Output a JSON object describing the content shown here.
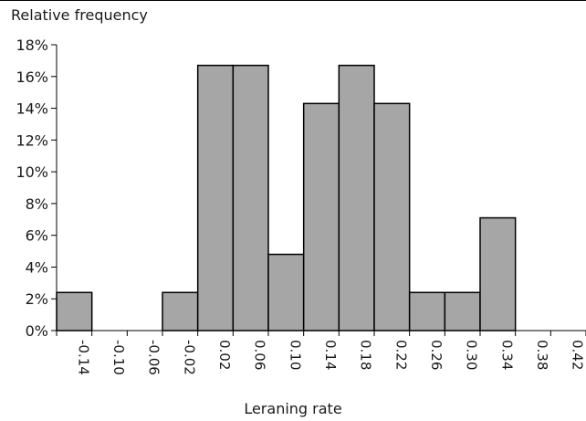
{
  "chart_data": {
    "type": "bar",
    "title": "",
    "ylabel": "Relative frequency",
    "xlabel": "Leraning rate",
    "categories": [
      "-0.14",
      "-0.10",
      "-0.06",
      "-0.02",
      "0.02",
      "0.06",
      "0.10",
      "0.14",
      "0.18",
      "0.22",
      "0.26",
      "0.30",
      "0.34",
      "0.38",
      "0.42"
    ],
    "values": [
      2.4,
      0,
      0,
      2.4,
      16.7,
      16.7,
      4.8,
      14.3,
      16.7,
      14.3,
      2.4,
      2.4,
      7.1,
      0,
      0
    ],
    "y_unit": "%",
    "ylim": [
      0,
      18
    ],
    "yticks": [
      "0%",
      "2%",
      "4%",
      "6%",
      "8%",
      "10%",
      "12%",
      "14%",
      "16%",
      "18%"
    ],
    "grid": false,
    "legend": "none",
    "bar_color": "#a6a6a6",
    "edge_color": "#000000"
  }
}
